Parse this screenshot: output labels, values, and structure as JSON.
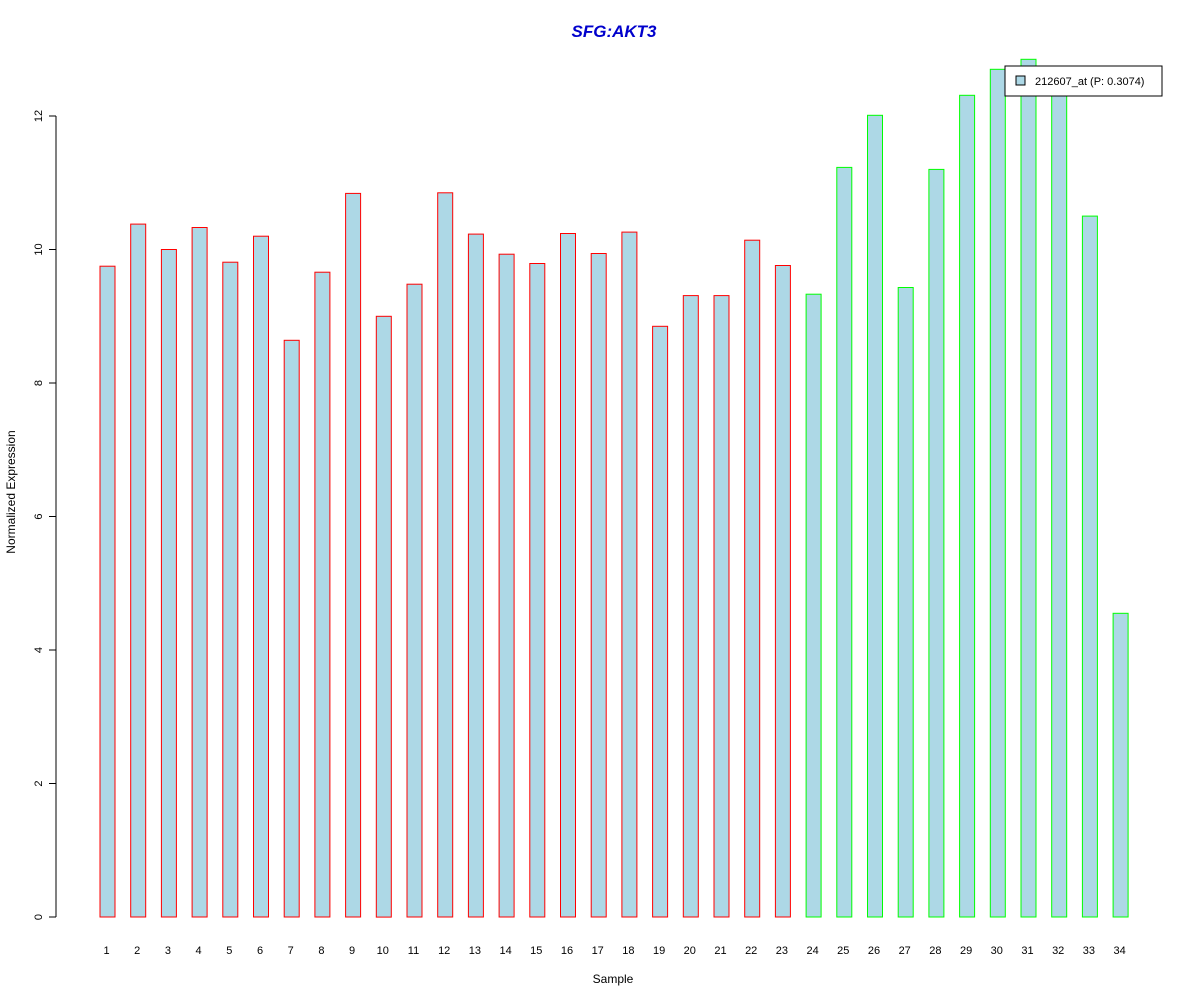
{
  "chart_data": {
    "type": "bar",
    "title": "SFG:AKT3",
    "xlabel": "Sample",
    "ylabel": "Normalized Expression",
    "categories": [
      "1",
      "2",
      "3",
      "4",
      "5",
      "6",
      "7",
      "8",
      "9",
      "10",
      "11",
      "12",
      "13",
      "14",
      "15",
      "16",
      "17",
      "18",
      "19",
      "20",
      "21",
      "22",
      "23",
      "24",
      "25",
      "26",
      "27",
      "28",
      "29",
      "30",
      "31",
      "32",
      "33",
      "34"
    ],
    "series": [
      {
        "name": "212607_at (P: 0.3074)",
        "values": [
          9.75,
          10.38,
          10.0,
          10.33,
          9.81,
          10.2,
          8.64,
          9.66,
          10.84,
          9.0,
          9.48,
          10.85,
          10.23,
          9.93,
          9.79,
          10.24,
          9.94,
          10.26,
          8.85,
          9.31,
          9.31,
          10.14,
          9.76,
          9.33,
          11.23,
          12.01,
          9.43,
          11.2,
          12.31,
          12.7,
          12.85,
          12.38,
          10.5,
          4.55
        ]
      }
    ],
    "groups": [
      1,
      1,
      1,
      1,
      1,
      1,
      1,
      1,
      1,
      1,
      1,
      1,
      1,
      1,
      1,
      1,
      1,
      1,
      1,
      1,
      1,
      1,
      1,
      2,
      2,
      2,
      2,
      2,
      2,
      2,
      2,
      2,
      2,
      2
    ],
    "ylim": [
      0,
      12.85
    ],
    "yticks": [
      0,
      2,
      4,
      6,
      8,
      10,
      12
    ],
    "grid": false,
    "legend": {
      "position": "top-right"
    },
    "colors": {
      "title": "#0000CC",
      "bar_fill": "#ADD8E6",
      "group1_border": "#FF0000",
      "group2_border": "#00FF00",
      "axis": "#000000"
    }
  }
}
